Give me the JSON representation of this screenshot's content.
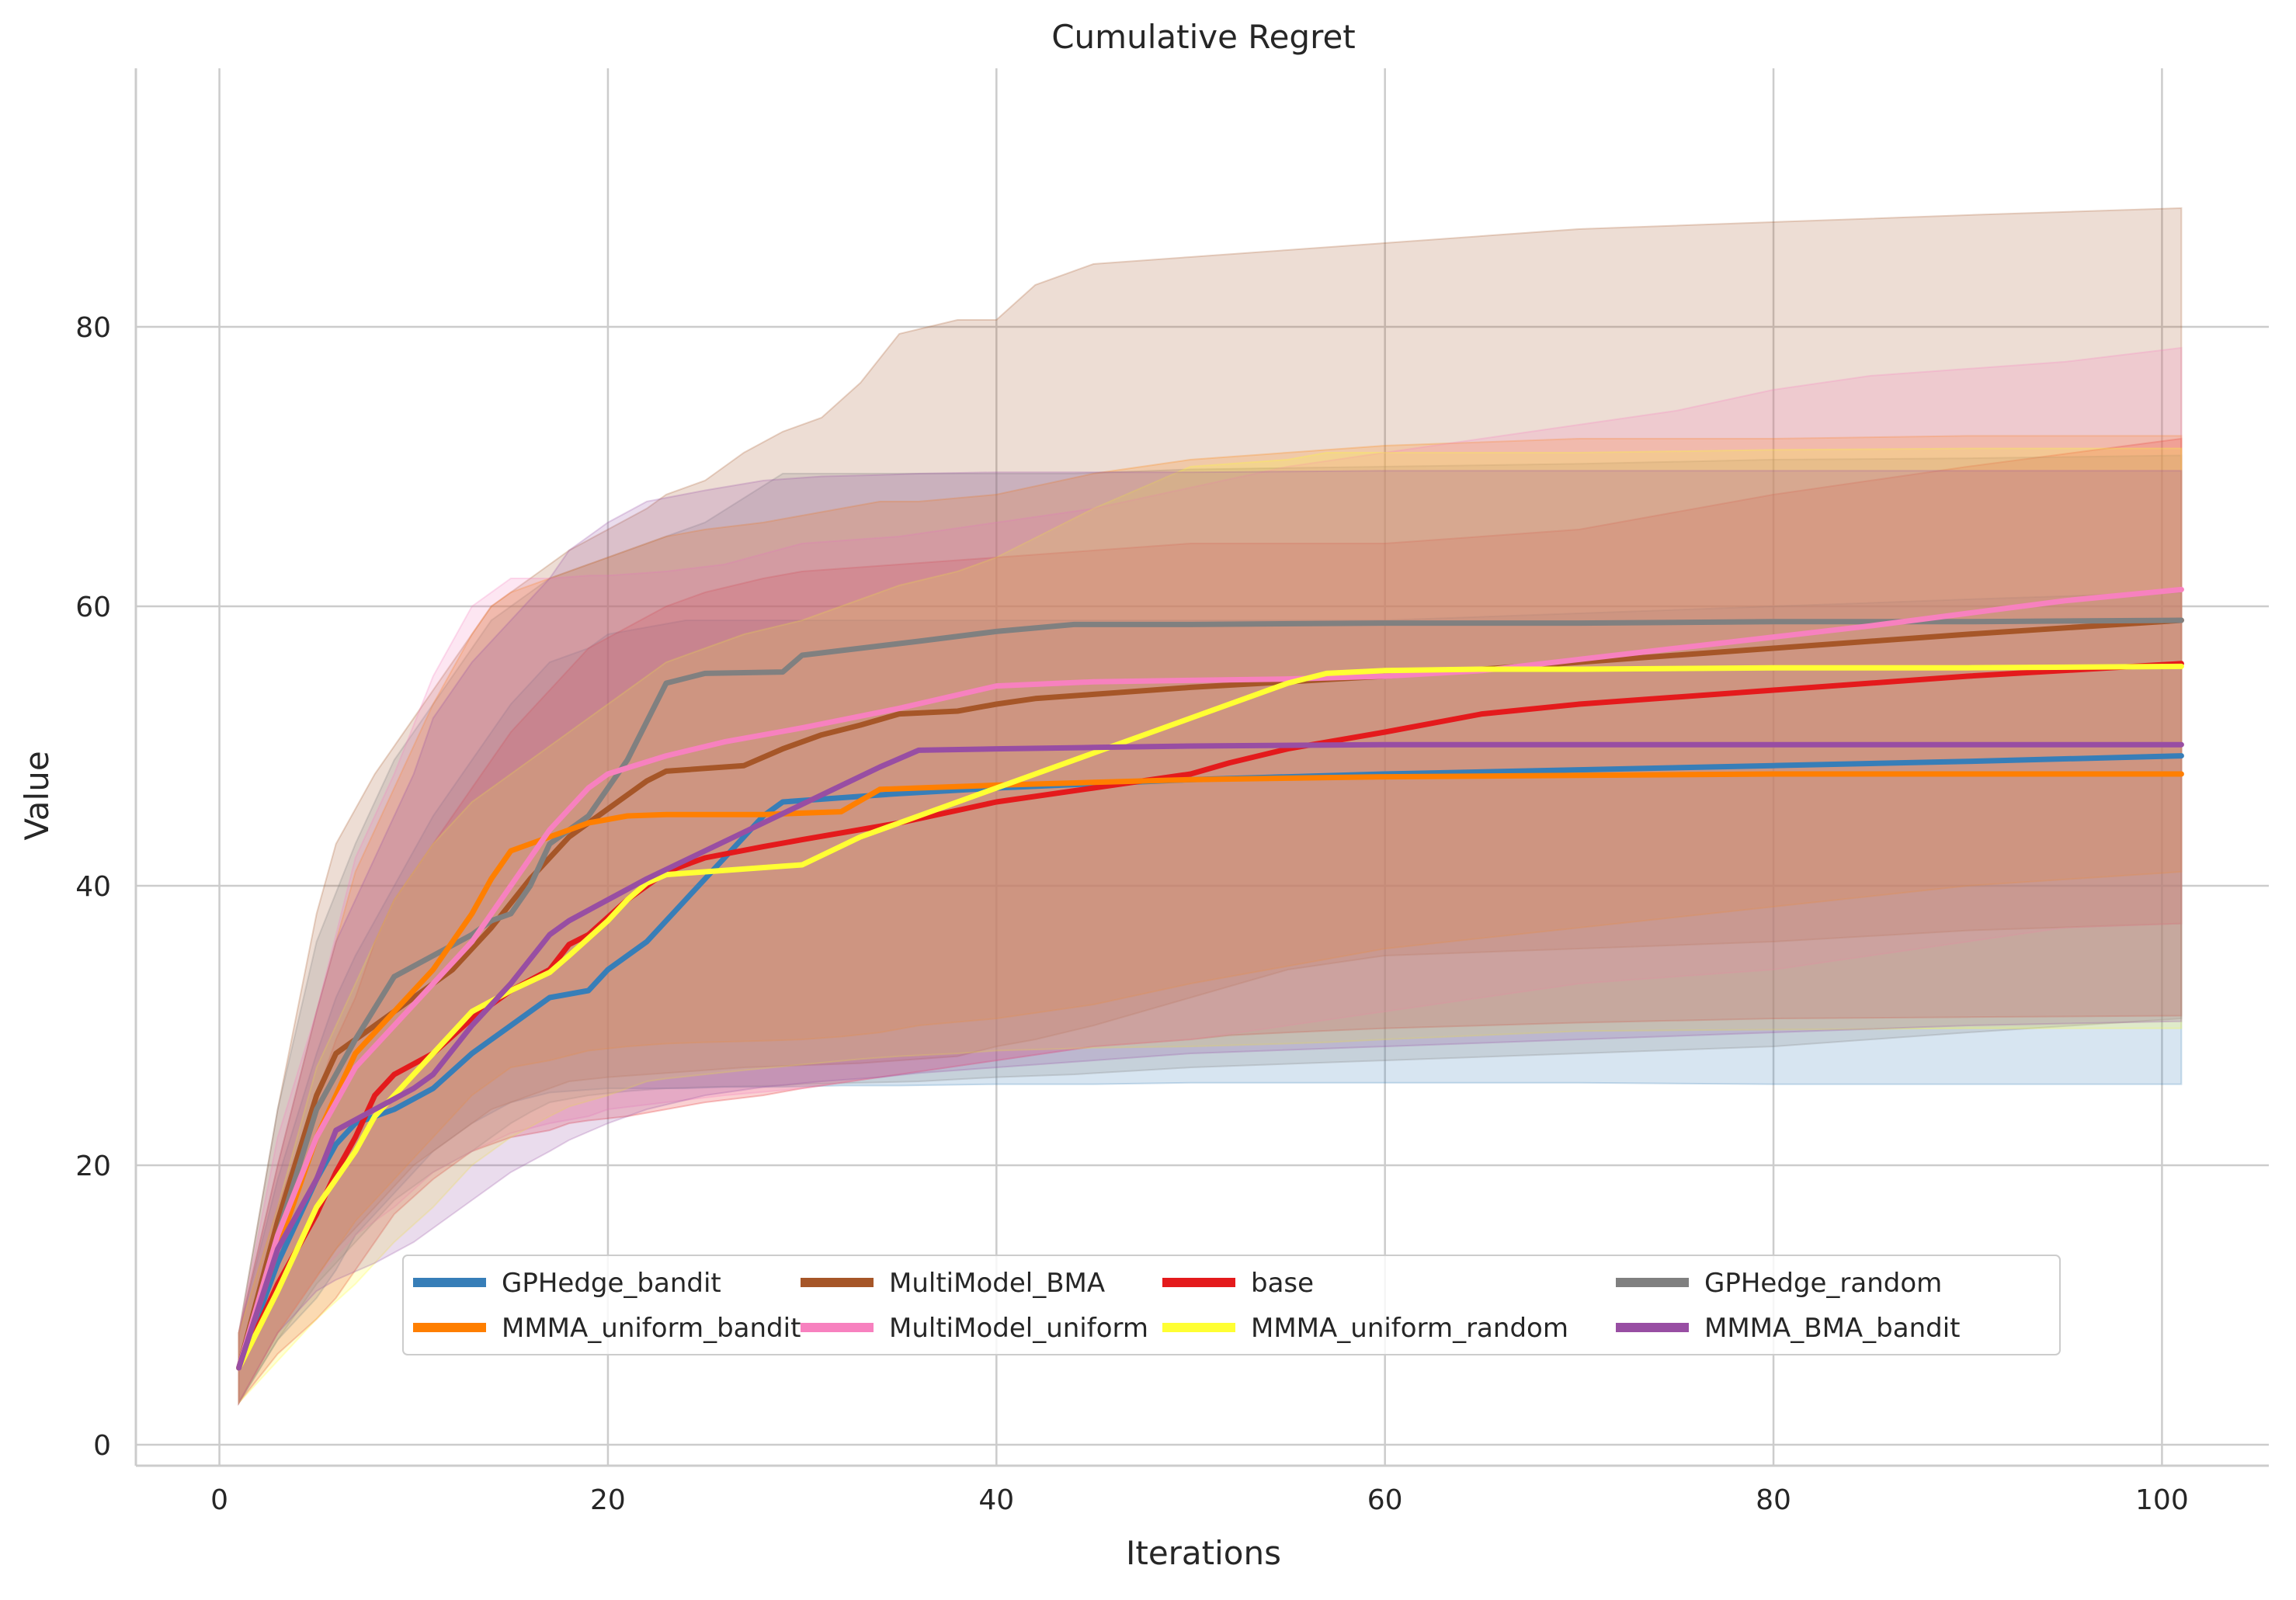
{
  "chart_data": {
    "type": "line",
    "title": "Cumulative Regret",
    "xlabel": "Iterations",
    "ylabel": "Value",
    "xlim": [
      -4.3,
      105.5
    ],
    "ylim": [
      -1.5,
      98.5
    ],
    "xticks": [
      0,
      20,
      40,
      60,
      80,
      100
    ],
    "yticks": [
      0,
      20,
      40,
      60,
      80
    ],
    "grid": true,
    "legend_position": "bottom-center",
    "legend_columns": 4,
    "series": [
      {
        "name": "GPHedge_bandit",
        "color": "#377eb8",
        "x": [
          1,
          3,
          5,
          6,
          7,
          9,
          11,
          13,
          15,
          17,
          19,
          20,
          22,
          24,
          26,
          28,
          29,
          32,
          35,
          40,
          45,
          50,
          60,
          70,
          80,
          90,
          101
        ],
        "y": [
          5.5,
          13,
          19,
          21.5,
          23,
          24,
          25.5,
          28,
          30,
          32,
          32.5,
          34,
          36,
          39,
          42,
          45,
          46,
          46.3,
          46.6,
          47,
          47.3,
          47.6,
          48,
          48.3,
          48.6,
          48.9,
          49.3
        ],
        "lower": [
          3,
          7.5,
          10.5,
          12.5,
          15,
          18,
          21,
          23,
          24.5,
          25.2,
          25.4,
          25.5,
          25.5,
          25.5,
          25.6,
          25.6,
          25.6,
          25.7,
          25.7,
          25.8,
          25.8,
          25.9,
          25.9,
          25.9,
          25.8,
          25.8,
          25.8
        ],
        "upper": [
          8,
          19,
          28,
          32,
          35,
          40,
          45,
          49,
          53,
          56,
          57,
          58,
          58.5,
          59,
          59,
          59,
          59,
          59,
          59,
          59,
          59,
          59,
          59,
          59.5,
          60,
          60.5,
          61
        ]
      },
      {
        "name": "MultiModel_BMA",
        "color": "#a65628",
        "x": [
          1,
          3,
          5,
          6,
          8,
          10,
          12,
          14,
          16,
          18,
          20,
          22,
          23,
          25,
          27,
          29,
          31,
          33,
          35,
          38,
          40,
          42,
          45,
          50,
          55,
          60,
          70,
          80,
          90,
          101
        ],
        "y": [
          5.5,
          16,
          25,
          28,
          30,
          32,
          34,
          37,
          40.5,
          43.5,
          45.5,
          47.5,
          48.2,
          48.4,
          48.6,
          49.8,
          50.8,
          51.5,
          52.3,
          52.5,
          53,
          53.4,
          53.7,
          54.2,
          54.6,
          55,
          56,
          57,
          58,
          59
        ],
        "lower": [
          3,
          8,
          12,
          14,
          17,
          20,
          22,
          24,
          25,
          26,
          26.3,
          26.5,
          26.6,
          26.8,
          27,
          27.1,
          27.2,
          27.3,
          27.5,
          27.8,
          28.5,
          29,
          30,
          32,
          34,
          35,
          35.5,
          36,
          36.8,
          37.3
        ],
        "upper": [
          8,
          24,
          38,
          43,
          48,
          52,
          56,
          60,
          62,
          64,
          65.5,
          67,
          68,
          69,
          71,
          72.5,
          73.5,
          76,
          79.5,
          80.5,
          80.5,
          83,
          84.5,
          85,
          85.5,
          86,
          87,
          87.5,
          88,
          88.5
        ]
      },
      {
        "name": "base",
        "color": "#e41a1c",
        "x": [
          1,
          3,
          5,
          6,
          7,
          8,
          9,
          11,
          13,
          15,
          17,
          18,
          19,
          21,
          23,
          25,
          28,
          30,
          35,
          40,
          45,
          50,
          52,
          55,
          60,
          65,
          70,
          80,
          90,
          101
        ],
        "y": [
          5.5,
          11.5,
          16.5,
          19.5,
          22,
          25,
          26.5,
          28,
          30.5,
          32.5,
          34,
          35.8,
          36.5,
          39,
          41,
          42,
          42.8,
          43.3,
          44.5,
          46,
          47,
          48,
          48.8,
          49.8,
          51,
          52.3,
          53,
          54,
          55,
          55.9
        ],
        "lower": [
          3,
          6.5,
          9,
          10.5,
          12.5,
          14.5,
          16.5,
          19,
          21,
          22,
          22.5,
          23,
          23.2,
          23.5,
          24,
          24.5,
          25,
          25.5,
          26.5,
          27.5,
          28.5,
          29,
          29.3,
          29.5,
          29.8,
          30,
          30.2,
          30.5,
          30.6,
          30.7
        ],
        "upper": [
          8,
          17,
          25,
          29,
          32,
          36,
          39,
          43,
          47,
          51,
          54,
          55.5,
          57,
          58.5,
          60,
          61,
          62,
          62.5,
          63,
          63.5,
          64,
          64.5,
          64.5,
          64.5,
          64.5,
          65,
          65.5,
          68,
          70,
          72
        ]
      },
      {
        "name": "GPHedge_random",
        "color": "#808080",
        "x": [
          1,
          3,
          5,
          7,
          9,
          11,
          13,
          14,
          15,
          16,
          17,
          19,
          21,
          23,
          25,
          29,
          30,
          33,
          36,
          40,
          44,
          50,
          60,
          70,
          80,
          90,
          101
        ],
        "y": [
          5.5,
          15,
          24,
          29,
          33.5,
          35,
          36.5,
          37.5,
          38,
          40,
          43,
          45,
          49,
          54.5,
          55.2,
          55.3,
          56.5,
          57,
          57.5,
          58.2,
          58.7,
          58.7,
          58.8,
          58.8,
          58.9,
          58.9,
          59
        ],
        "lower": [
          3,
          7.5,
          11.5,
          14.5,
          17.5,
          19.5,
          21,
          22,
          23,
          23.8,
          24.5,
          25,
          25.3,
          25.5,
          25.6,
          25.7,
          25.8,
          25.9,
          26,
          26.3,
          26.5,
          27,
          27.5,
          28,
          28.5,
          29.5,
          30.5
        ],
        "upper": [
          8,
          24,
          36,
          43,
          49,
          53,
          57,
          59,
          60,
          61,
          62,
          63,
          64,
          65,
          66,
          69.5,
          69.5,
          69.5,
          69.5,
          69.5,
          69.5,
          69.8,
          70,
          70.2,
          70.5,
          70.6,
          70.8
        ]
      },
      {
        "name": "MMMA_uniform_bandit",
        "color": "#ff7f00",
        "x": [
          1,
          3,
          5,
          6,
          7,
          9,
          11,
          13,
          14,
          15,
          17,
          19,
          21,
          23,
          25,
          28,
          30,
          32,
          34,
          36,
          40,
          45,
          50,
          60,
          70,
          80,
          90,
          101
        ],
        "y": [
          5.5,
          14,
          22,
          25,
          28,
          31,
          34,
          38,
          40.5,
          42.5,
          43.5,
          44.5,
          45,
          45.1,
          45.1,
          45.1,
          45.2,
          45.3,
          46.9,
          47,
          47.2,
          47.4,
          47.6,
          47.8,
          47.9,
          48,
          48,
          48
        ],
        "lower": [
          3,
          8,
          12,
          14,
          16,
          19,
          22,
          25,
          26,
          27,
          27.5,
          28.2,
          28.5,
          28.7,
          28.8,
          28.9,
          29,
          29.2,
          29.5,
          30,
          30.5,
          31.5,
          33,
          35.5,
          37,
          38.5,
          40,
          41
        ],
        "upper": [
          8,
          20,
          31,
          36,
          41,
          47,
          53,
          58,
          60,
          61,
          62,
          63,
          64,
          65,
          65.5,
          66,
          66.5,
          67,
          67.5,
          67.5,
          68,
          69.5,
          70.5,
          71.5,
          72,
          72,
          72.2,
          72.2
        ]
      },
      {
        "name": "MultiModel_uniform",
        "color": "#f781bf",
        "x": [
          1,
          3,
          5,
          7,
          9,
          11,
          13,
          15,
          17,
          19,
          20,
          23,
          26,
          30,
          35,
          40,
          45,
          50,
          55,
          60,
          65,
          70,
          75,
          80,
          85,
          90,
          95,
          101
        ],
        "y": [
          5.5,
          15,
          22,
          27,
          30,
          33,
          36,
          40,
          44,
          47,
          48,
          49.3,
          50.3,
          51.3,
          52.7,
          54.3,
          54.6,
          54.7,
          54.8,
          55,
          55.4,
          56.2,
          57,
          57.8,
          58.6,
          59.5,
          60.4,
          61.2
        ],
        "lower": [
          3,
          8,
          12,
          15,
          17,
          19.5,
          21,
          22.3,
          23,
          23.5,
          24,
          24.5,
          25,
          25.5,
          26.5,
          27.5,
          28.5,
          29,
          30,
          31,
          32,
          33,
          33.5,
          34,
          35,
          36,
          37,
          37.3
        ],
        "upper": [
          8,
          22,
          31,
          42,
          48,
          55,
          60,
          62,
          62,
          62.2,
          62.2,
          62.5,
          63,
          64.5,
          65,
          66,
          67,
          68.5,
          70,
          71,
          72,
          73,
          74,
          75.5,
          76.5,
          77,
          77.5,
          78.5
        ]
      },
      {
        "name": "MMMA_uniform_random",
        "color": "#ffff33",
        "x": [
          1,
          3,
          5,
          7,
          8,
          9,
          11,
          13,
          15,
          17,
          18,
          20,
          21,
          22,
          23,
          25,
          27,
          30,
          33,
          35,
          38,
          40,
          45,
          50,
          55,
          57,
          60,
          65,
          70,
          80,
          90,
          101
        ],
        "y": [
          5.5,
          11,
          17,
          21,
          23.5,
          25,
          28,
          31,
          32.5,
          33.8,
          35,
          37.5,
          39,
          40.2,
          40.8,
          41,
          41.2,
          41.5,
          43.5,
          44.5,
          46,
          47,
          49.5,
          52,
          54.5,
          55.2,
          55.4,
          55.5,
          55.5,
          55.6,
          55.6,
          55.7
        ],
        "lower": [
          3,
          6,
          9,
          11.5,
          13,
          14.5,
          17,
          20,
          22,
          23.5,
          24.2,
          25,
          25.5,
          26,
          26.2,
          26.5,
          26.8,
          27.2,
          27.6,
          27.8,
          28,
          28.2,
          28.4,
          28.5,
          28.7,
          28.8,
          29,
          29.3,
          29.6,
          29.7,
          29.8,
          29.8
        ],
        "upper": [
          8,
          17,
          27,
          33,
          36,
          39,
          43,
          46,
          48,
          50,
          51,
          53,
          54,
          55,
          56,
          57,
          58,
          59,
          60.5,
          61.5,
          62.5,
          63.5,
          67,
          70,
          70.5,
          71,
          71,
          71,
          71,
          71.2,
          71.3,
          71.3
        ]
      },
      {
        "name": "MMMA_BMA_bandit",
        "color": "#984ea3",
        "x": [
          1,
          3,
          5,
          6,
          8,
          10,
          11,
          13,
          15,
          17,
          18,
          20,
          22,
          25,
          28,
          31,
          34,
          36,
          40,
          45,
          50,
          60,
          70,
          80,
          90,
          101
        ],
        "y": [
          5.5,
          14,
          19,
          22.5,
          24,
          25.5,
          26.5,
          30,
          33,
          36.5,
          37.5,
          39,
          40.5,
          42.5,
          44.5,
          46.5,
          48.5,
          49.7,
          49.8,
          49.9,
          50,
          50.1,
          50.1,
          50.1,
          50.1,
          50.1
        ],
        "lower": [
          3,
          8,
          11,
          11.8,
          13,
          14.5,
          15.5,
          17.5,
          19.5,
          21,
          21.8,
          23,
          24,
          25,
          25.6,
          26,
          26.3,
          26.6,
          27,
          27.5,
          28,
          28.5,
          29,
          29.5,
          30,
          30.3
        ],
        "upper": [
          8,
          20,
          31,
          36,
          42,
          48,
          52,
          56,
          59,
          62,
          64,
          66,
          67.5,
          68.3,
          69,
          69.3,
          69.4,
          69.5,
          69.6,
          69.6,
          69.6,
          69.7,
          69.7,
          69.7,
          69.7,
          69.7
        ]
      }
    ]
  }
}
